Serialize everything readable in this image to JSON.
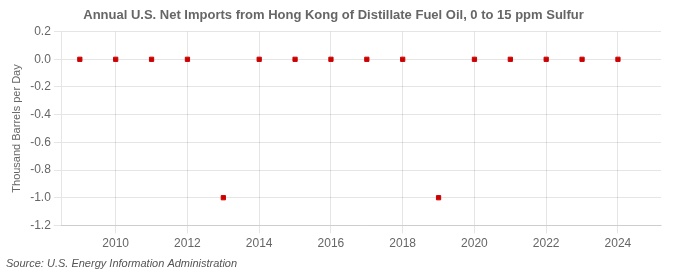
{
  "chart_data": {
    "type": "scatter",
    "title": "Annual U.S. Net Imports from Hong Kong of Distillate Fuel Oil, 0 to 15 ppm Sulfur",
    "y_label": "Thousand Barrels per Day",
    "annotations": [
      "Source: U.S. Energy Information Administration"
    ],
    "x": [
      2009,
      2010,
      2011,
      2012,
      2013,
      2014,
      2015,
      2016,
      2017,
      2018,
      2019,
      2020,
      2021,
      2022,
      2023,
      2024
    ],
    "values": [
      0,
      0,
      0,
      0,
      -1,
      0,
      0,
      0,
      0,
      0,
      -1,
      0,
      0,
      0,
      0,
      0
    ],
    "color": "#cc0000",
    "marker": "square",
    "xlim": [
      2008.5,
      2025.2
    ],
    "xticks": [
      2010,
      2012,
      2014,
      2016,
      2018,
      2020,
      2022,
      2024
    ],
    "ylim": [
      -1.2,
      0.2
    ],
    "yticks": [
      -1.2,
      {
        "value": -1.0,
        "label": "-1.0"
      },
      -0.8,
      -0.6,
      -0.4,
      -0.2,
      {
        "value": 0,
        "label": "0.0"
      },
      0.2
    ],
    "grid": true
  }
}
